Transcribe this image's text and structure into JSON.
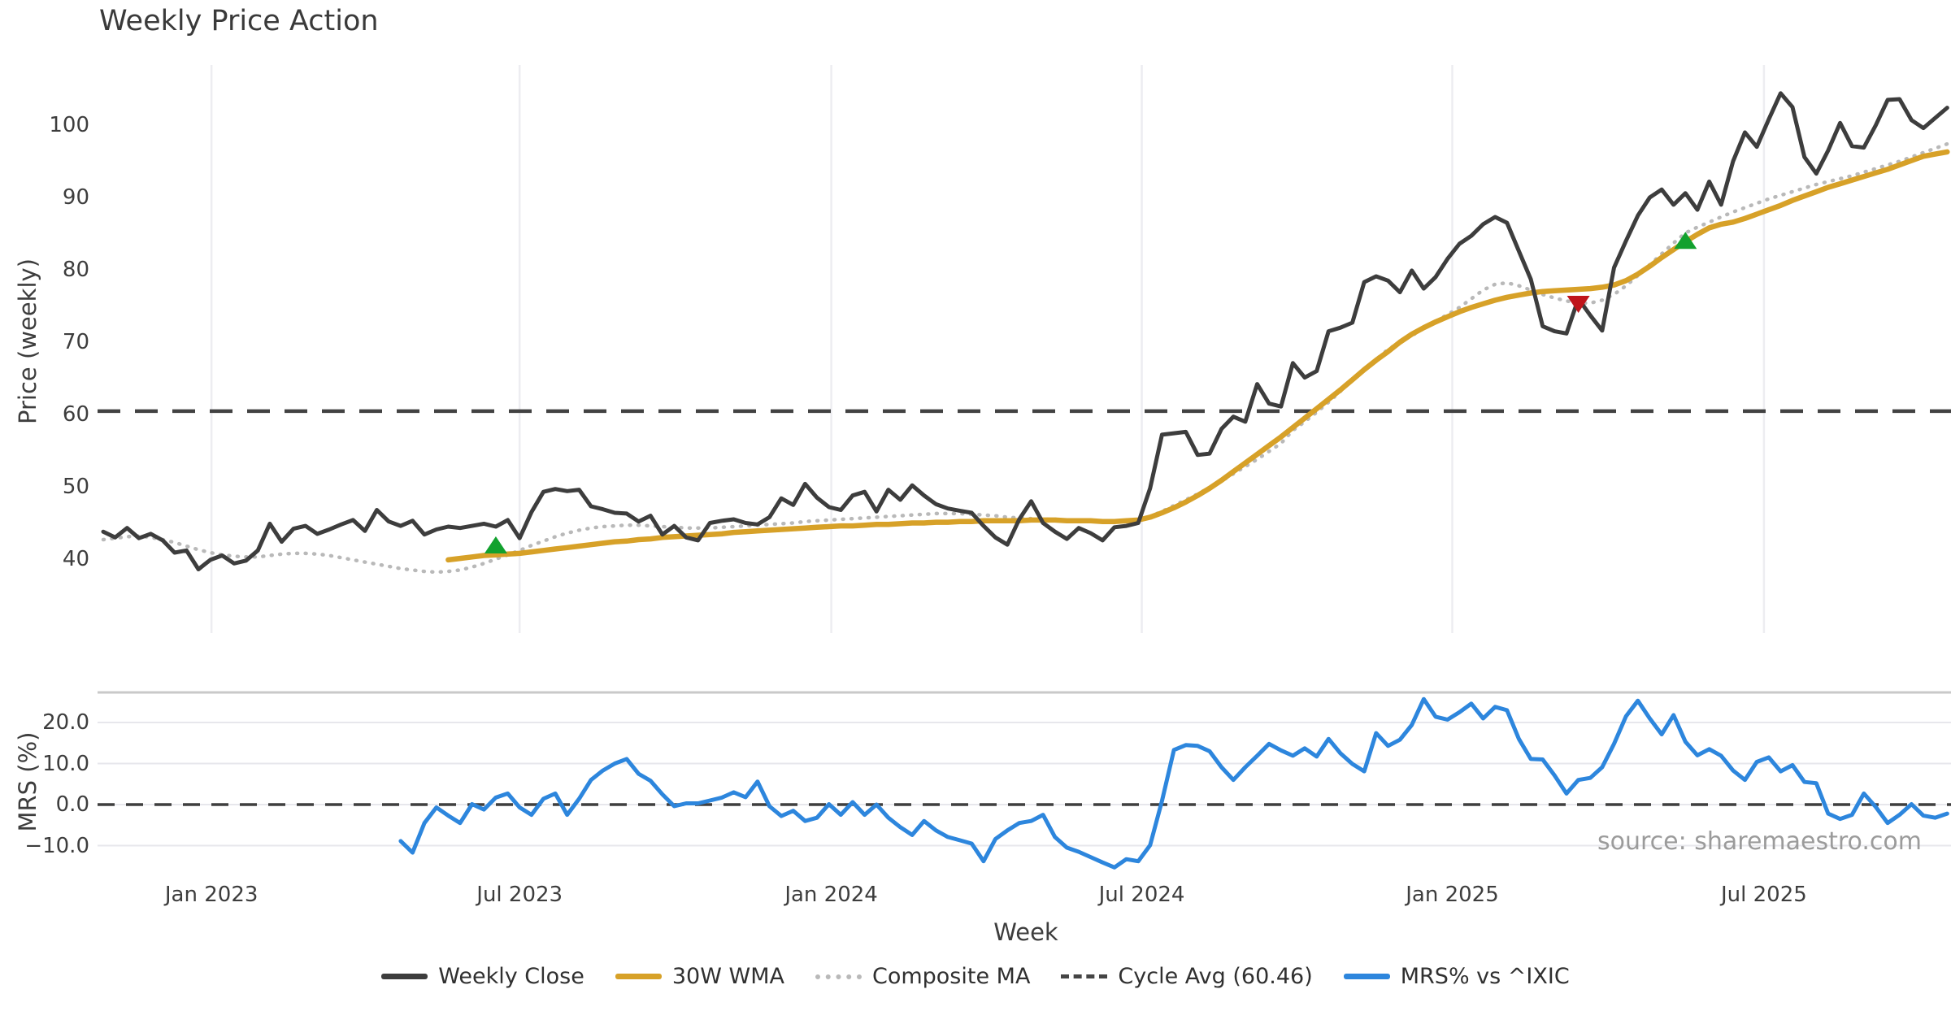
{
  "title": "Weekly Price Action",
  "xlabel": "Week",
  "source": "source: sharemaestro.com",
  "price_panel": {
    "ylabel": "Price (weekly)",
    "yticks": [
      100,
      90,
      80,
      70,
      60,
      50,
      40
    ],
    "cycle_avg_value": 60.46
  },
  "mrs_panel": {
    "ylabel": "MRS (%)",
    "yticks": [
      {
        "value": 20,
        "label": "20.0"
      },
      {
        "value": 10,
        "label": "10.0"
      },
      {
        "value": 0,
        "label": "0.0"
      },
      {
        "value": -10,
        "label": "−10.0"
      }
    ]
  },
  "xticks": [
    {
      "label": "Jan 2023",
      "week": 9.1
    },
    {
      "label": "Jul 2023",
      "week": 35.0
    },
    {
      "label": "Jan 2024",
      "week": 61.2
    },
    {
      "label": "Jul 2024",
      "week": 87.3
    },
    {
      "label": "Jan 2025",
      "week": 113.4
    },
    {
      "label": "Jul 2025",
      "week": 139.6
    }
  ],
  "legend": [
    {
      "label": "Weekly Close",
      "swatch": "solid",
      "color": "#3d3d3d"
    },
    {
      "label": "30W WMA",
      "swatch": "solid",
      "color": "#d7a128"
    },
    {
      "label": "Composite MA",
      "swatch": "dotted",
      "color": "#b9b9b9"
    },
    {
      "label": "Cycle Avg (60.46)",
      "swatch": "dashed",
      "color": "#454545"
    },
    {
      "label": "MRS% vs ^IXIC",
      "swatch": "solid",
      "color": "#2d86dd"
    }
  ],
  "colors": {
    "weekly_close": "#3d3d3d",
    "wma": "#d7a128",
    "composite": "#b9b9b9",
    "cycle_avg": "#424242",
    "mrs": "#2d86dd",
    "buy_marker": "#12a12e",
    "sell_marker": "#c0151b",
    "grid_vertical": "#ededf1",
    "grid_horizontal": "#e7e7ec",
    "panel_spine": "#c9c9c9",
    "zero_line": "#3f3f3f"
  },
  "chart_data": {
    "type": "line",
    "title": "Weekly Price Action",
    "xlabel": "Week",
    "x_unit": "week_index",
    "weeks_total": 156,
    "x_range_labels": [
      "Nov 2022",
      "Oct 2025"
    ],
    "price_ylim": [
      29.8,
      108.3
    ],
    "mrs_ylim": [
      -17.4,
      27.3
    ],
    "grid": {
      "top_panel": "vertical_only",
      "bottom_panel": "horizontal_only"
    },
    "legend_position": "bottom_center",
    "series": [
      {
        "name": "Weekly Close",
        "panel": "price",
        "start_week": 0,
        "color": "#3d3d3d",
        "style": "solid",
        "values": [
          43.8,
          43.0,
          44.3,
          42.9,
          43.5,
          42.6,
          40.9,
          41.2,
          38.6,
          39.9,
          40.5,
          39.4,
          39.8,
          41.2,
          44.9,
          42.4,
          44.2,
          44.6,
          43.5,
          44.1,
          44.8,
          45.4,
          43.9,
          46.8,
          45.2,
          44.6,
          45.3,
          43.4,
          44.1,
          44.5,
          44.3,
          44.6,
          44.9,
          44.5,
          45.4,
          42.9,
          46.5,
          49.3,
          49.7,
          49.4,
          49.6,
          47.3,
          46.9,
          46.4,
          46.3,
          45.2,
          46.0,
          43.4,
          44.6,
          43.0,
          42.6,
          45.0,
          45.3,
          45.5,
          45.0,
          44.8,
          45.8,
          48.4,
          47.5,
          50.4,
          48.5,
          47.2,
          46.8,
          48.8,
          49.3,
          46.6,
          49.6,
          48.2,
          50.2,
          48.8,
          47.6,
          47.0,
          46.7,
          46.4,
          44.6,
          43.0,
          42.0,
          45.5,
          48.0,
          45.0,
          43.8,
          42.8,
          44.3,
          43.6,
          42.6,
          44.4,
          44.6,
          45.0,
          49.8,
          57.2,
          57.4,
          57.6,
          54.4,
          54.6,
          58.0,
          59.7,
          59.0,
          64.2,
          61.5,
          61.1,
          67.1,
          65.1,
          66.0,
          71.5,
          72.0,
          72.7,
          78.3,
          79.1,
          78.5,
          76.9,
          79.9,
          77.4,
          79.0,
          81.5,
          83.6,
          84.7,
          86.3,
          87.3,
          86.5,
          82.6,
          78.7,
          72.2,
          71.5,
          71.2,
          76.0,
          73.7,
          71.6,
          80.3,
          84.0,
          87.5,
          90.0,
          91.1,
          89.0,
          90.6,
          88.3,
          92.2,
          89.0,
          95.0,
          99.0,
          97.0,
          100.8,
          104.4,
          102.5,
          95.6,
          93.3,
          96.5,
          100.3,
          97.1,
          96.9,
          100.0,
          103.5,
          103.6,
          100.7,
          99.6,
          101.0,
          102.4
        ]
      },
      {
        "name": "30W WMA",
        "panel": "price",
        "start_week": 29,
        "color": "#d7a128",
        "style": "solid",
        "values": [
          39.9,
          40.1,
          40.3,
          40.5,
          40.6,
          40.7,
          40.8,
          41.0,
          41.2,
          41.4,
          41.6,
          41.8,
          42.0,
          42.2,
          42.4,
          42.5,
          42.7,
          42.8,
          43.0,
          43.1,
          43.2,
          43.3,
          43.4,
          43.5,
          43.7,
          43.8,
          43.9,
          44.0,
          44.1,
          44.2,
          44.3,
          44.4,
          44.5,
          44.6,
          44.6,
          44.7,
          44.8,
          44.8,
          44.9,
          45.0,
          45.0,
          45.1,
          45.1,
          45.2,
          45.2,
          45.3,
          45.3,
          45.3,
          45.3,
          45.4,
          45.4,
          45.4,
          45.3,
          45.3,
          45.3,
          45.2,
          45.2,
          45.3,
          45.4,
          45.8,
          46.4,
          47.1,
          47.9,
          48.8,
          49.8,
          50.9,
          52.1,
          53.3,
          54.5,
          55.7,
          56.9,
          58.2,
          59.5,
          60.8,
          62.1,
          63.4,
          64.8,
          66.2,
          67.5,
          68.7,
          70.0,
          71.1,
          72.0,
          72.8,
          73.5,
          74.2,
          74.8,
          75.3,
          75.8,
          76.2,
          76.5,
          76.8,
          77.0,
          77.1,
          77.2,
          77.3,
          77.4,
          77.6,
          77.9,
          78.5,
          79.4,
          80.5,
          81.7,
          82.8,
          83.9,
          84.9,
          85.8,
          86.3,
          86.6,
          87.1,
          87.7,
          88.3,
          88.9,
          89.6,
          90.2,
          90.8,
          91.4,
          91.9,
          92.4,
          92.9,
          93.4,
          93.9,
          94.5,
          95.1,
          95.7,
          96.0,
          96.3
        ]
      },
      {
        "name": "Composite MA",
        "panel": "price",
        "start_week": 0,
        "color": "#b9b9b9",
        "style": "dotted",
        "values": [
          42.7,
          42.9,
          43.1,
          43.2,
          43.0,
          42.7,
          42.3,
          41.8,
          41.3,
          40.9,
          40.6,
          40.4,
          40.3,
          40.3,
          40.5,
          40.7,
          40.8,
          40.8,
          40.7,
          40.5,
          40.2,
          39.9,
          39.6,
          39.3,
          39.0,
          38.7,
          38.5,
          38.3,
          38.2,
          38.3,
          38.5,
          38.9,
          39.4,
          40.0,
          40.6,
          41.2,
          41.9,
          42.5,
          43.1,
          43.6,
          44.0,
          44.3,
          44.5,
          44.6,
          44.7,
          44.7,
          44.6,
          44.5,
          44.4,
          44.3,
          44.3,
          44.3,
          44.4,
          44.5,
          44.6,
          44.7,
          44.8,
          44.9,
          45.0,
          45.2,
          45.3,
          45.4,
          45.5,
          45.6,
          45.7,
          45.8,
          45.9,
          46.0,
          46.1,
          46.2,
          46.3,
          46.3,
          46.3,
          46.2,
          46.1,
          46.0,
          45.8,
          45.7,
          45.6,
          45.5,
          45.5,
          45.4,
          45.4,
          45.3,
          45.3,
          45.3,
          45.3,
          45.4,
          45.9,
          46.6,
          47.4,
          48.2,
          49.0,
          49.9,
          50.8,
          51.8,
          52.8,
          53.8,
          54.9,
          56.0,
          57.8,
          59.0,
          60.3,
          61.7,
          63.2,
          64.8,
          66.2,
          67.6,
          69.0,
          70.0,
          70.9,
          71.9,
          72.9,
          73.8,
          74.8,
          76.0,
          77.2,
          78.0,
          78.2,
          77.8,
          77.2,
          76.6,
          76.1,
          75.7,
          75.4,
          75.4,
          75.8,
          76.6,
          77.8,
          79.2,
          80.7,
          82.2,
          83.7,
          85.1,
          85.9,
          86.6,
          87.3,
          88.0,
          88.6,
          89.2,
          89.8,
          90.3,
          90.8,
          91.3,
          91.8,
          92.2,
          92.6,
          93.0,
          93.5,
          94.0,
          94.5,
          95.0,
          95.6,
          96.2,
          96.8,
          97.4
        ]
      },
      {
        "name": "Cycle Avg (60.46)",
        "panel": "price",
        "style": "dashed_horizontal",
        "color": "#424242",
        "value": 60.46
      },
      {
        "name": "MRS% vs ^IXIC",
        "panel": "mrs",
        "start_week": 25,
        "color": "#2d86dd",
        "style": "solid",
        "values": [
          -8.9,
          -11.7,
          -4.5,
          -0.7,
          -2.7,
          -4.5,
          0.1,
          -1.2,
          1.7,
          2.7,
          -0.7,
          -2.5,
          1.4,
          2.7,
          -2.5,
          1.4,
          6.0,
          8.3,
          10.0,
          11.1,
          7.5,
          5.8,
          2.5,
          -0.4,
          0.3,
          0.3,
          1.0,
          1.7,
          3.0,
          1.8,
          5.6,
          -0.4,
          -2.8,
          -1.5,
          -4.0,
          -3.2,
          0.1,
          -2.5,
          0.6,
          -2.5,
          0.0,
          -3.2,
          -5.5,
          -7.4,
          -4.0,
          -6.3,
          -7.9,
          -8.7,
          -9.5,
          -13.8,
          -8.4,
          -6.3,
          -4.5,
          -4.0,
          -2.5,
          -7.9,
          -10.5,
          -11.5,
          -12.8,
          -14.1,
          -15.3,
          -13.3,
          -13.8,
          -9.9,
          0.9,
          13.3,
          14.5,
          14.3,
          13.0,
          9.1,
          6.0,
          9.1,
          11.9,
          14.8,
          13.2,
          11.9,
          13.7,
          11.7,
          16.0,
          12.5,
          9.9,
          8.1,
          17.4,
          14.3,
          15.8,
          19.4,
          25.7,
          21.4,
          20.7,
          22.5,
          24.6,
          21.0,
          23.8,
          23.0,
          16.0,
          11.1,
          11.0,
          7.1,
          2.7,
          6.0,
          6.5,
          9.1,
          14.8,
          21.5,
          25.3,
          21.0,
          17.1,
          21.8,
          15.3,
          12.0,
          13.5,
          11.9,
          8.3,
          6.0,
          10.4,
          11.5,
          8.1,
          9.6,
          5.5,
          5.2,
          -2.2,
          -3.5,
          -2.5,
          2.7,
          -0.6,
          -4.5,
          -2.5,
          0.1,
          -2.7,
          -3.2,
          -2.2
        ]
      }
    ],
    "markers": [
      {
        "type": "buy",
        "shape": "triangle-up",
        "color": "#12a12e",
        "week": 33,
        "value": 41.8
      },
      {
        "type": "sell",
        "shape": "triangle-down",
        "color": "#c0151b",
        "week": 124,
        "value": 75.4
      },
      {
        "type": "buy",
        "shape": "triangle-up",
        "color": "#12a12e",
        "week": 133,
        "value": 83.9
      }
    ]
  }
}
